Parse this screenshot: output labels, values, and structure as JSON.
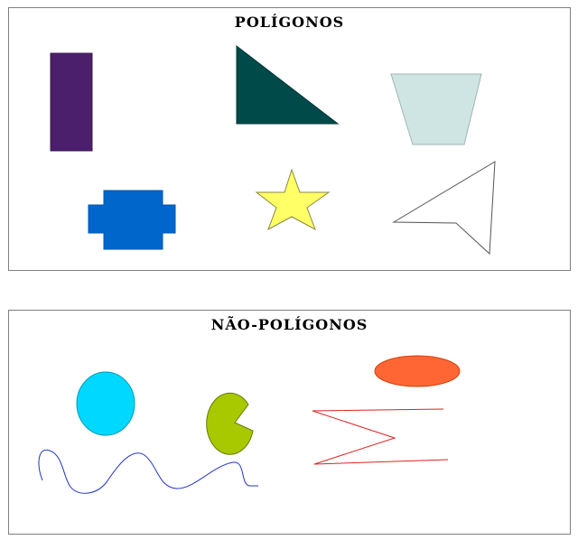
{
  "polygons_section": {
    "title": "POLÍGONOS",
    "shapes": [
      {
        "name": "rectangle",
        "fill": "#4b1f6b"
      },
      {
        "name": "right-triangle",
        "fill": "#004a4a"
      },
      {
        "name": "trapezoid",
        "fill": "#cfe5e4"
      },
      {
        "name": "cross-shape",
        "fill": "#0066cc"
      },
      {
        "name": "star",
        "fill": "#ffff66"
      },
      {
        "name": "arrowhead-outline",
        "fill": "none"
      }
    ]
  },
  "non_polygons_section": {
    "title": "NÃO-POLÍGONOS",
    "shapes": [
      {
        "name": "circle",
        "fill": "#00d8ff"
      },
      {
        "name": "pacman",
        "fill": "#a8c800"
      },
      {
        "name": "ellipse",
        "fill": "#ff6633"
      },
      {
        "name": "wavy-line",
        "stroke": "#2233cc"
      },
      {
        "name": "open-zigzag",
        "stroke": "#dd2222"
      }
    ]
  }
}
